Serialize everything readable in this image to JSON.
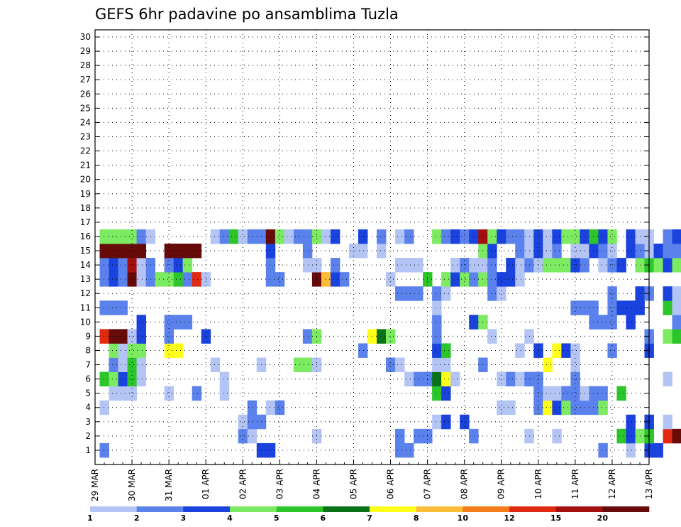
{
  "chart_data": {
    "type": "heatmap",
    "title": "GEFS 6hr padavine po ansamblima Tuzla",
    "y_ticks": [
      "1",
      "2",
      "3",
      "4",
      "5",
      "6",
      "7",
      "8",
      "9",
      "10",
      "11",
      "12",
      "13",
      "14",
      "15",
      "16",
      "17",
      "18",
      "19",
      "20",
      "21",
      "22",
      "23",
      "24",
      "25",
      "26",
      "27",
      "28",
      "29",
      "30"
    ],
    "x_ticks": [
      "29 MAR",
      "30 MAR",
      "31 MAR",
      "01 APR",
      "02 APR",
      "03 APR",
      "04 APR",
      "05 APR",
      "06 APR",
      "07 APR",
      "08 APR",
      "09 APR",
      "10 APR",
      "11 APR",
      "12 APR",
      "13 APR"
    ],
    "x_range": [
      "29 MAR 00z",
      "13 APR 00z"
    ],
    "time_step_hours": 6,
    "grid": true,
    "colorbar": {
      "labels": [
        "1",
        "2",
        "3",
        "4",
        "5",
        "6",
        "7",
        "8",
        "10",
        "12",
        "15",
        "20"
      ],
      "colors": [
        "#b4c5f5",
        "#5b82ec",
        "#1a42dd",
        "#7ceb62",
        "#2cc52a",
        "#0a7318",
        "#ffff1a",
        "#fdbd39",
        "#f47c1a",
        "#e02a12",
        "#a50f0f",
        "#660a0a"
      ]
    },
    "cells": [
      [
        1,
        1,
        1
      ],
      [
        1,
        1,
        2
      ],
      [
        1,
        18,
        3
      ],
      [
        1,
        19,
        3
      ],
      [
        1,
        33,
        2
      ],
      [
        1,
        34,
        2
      ],
      [
        1,
        55,
        2
      ],
      [
        1,
        58,
        1
      ],
      [
        1,
        60,
        3
      ],
      [
        1,
        61,
        3
      ],
      [
        2,
        16,
        2
      ],
      [
        2,
        17,
        1
      ],
      [
        2,
        24,
        1
      ],
      [
        2,
        33,
        2
      ],
      [
        2,
        35,
        2
      ],
      [
        2,
        36,
        2
      ],
      [
        2,
        41,
        2
      ],
      [
        2,
        47,
        1
      ],
      [
        2,
        50,
        1
      ],
      [
        2,
        57,
        5
      ],
      [
        2,
        58,
        3
      ],
      [
        2,
        59,
        4
      ],
      [
        2,
        60,
        5
      ],
      [
        2,
        62,
        10
      ],
      [
        2,
        63,
        12
      ],
      [
        3,
        16,
        1
      ],
      [
        3,
        17,
        2
      ],
      [
        3,
        18,
        2
      ],
      [
        3,
        37,
        1
      ],
      [
        3,
        38,
        3
      ],
      [
        3,
        40,
        3
      ],
      [
        3,
        58,
        3
      ],
      [
        3,
        60,
        3
      ],
      [
        3,
        62,
        1
      ],
      [
        3,
        65,
        5
      ],
      [
        3,
        67,
        3
      ],
      [
        3,
        69,
        2
      ],
      [
        3,
        70,
        3
      ],
      [
        3,
        71,
        3
      ],
      [
        3,
        72,
        2
      ],
      [
        4,
        1,
        1
      ],
      [
        4,
        17,
        2
      ],
      [
        4,
        19,
        1
      ],
      [
        4,
        20,
        2
      ],
      [
        4,
        44,
        1
      ],
      [
        4,
        45,
        1
      ],
      [
        4,
        48,
        2
      ],
      [
        4,
        49,
        7
      ],
      [
        4,
        50,
        3
      ],
      [
        4,
        51,
        4
      ],
      [
        4,
        52,
        2
      ],
      [
        4,
        53,
        2
      ],
      [
        4,
        54,
        2
      ],
      [
        4,
        55,
        4
      ],
      [
        5,
        2,
        1
      ],
      [
        5,
        3,
        1
      ],
      [
        5,
        4,
        1
      ],
      [
        5,
        8,
        1
      ],
      [
        5,
        11,
        2
      ],
      [
        5,
        14,
        1
      ],
      [
        5,
        37,
        5
      ],
      [
        5,
        38,
        3
      ],
      [
        5,
        48,
        2
      ],
      [
        5,
        49,
        1
      ],
      [
        5,
        50,
        1
      ],
      [
        5,
        51,
        2
      ],
      [
        5,
        52,
        2
      ],
      [
        5,
        53,
        1
      ],
      [
        5,
        54,
        2
      ],
      [
        5,
        55,
        2
      ],
      [
        5,
        57,
        5
      ],
      [
        6,
        1,
        5
      ],
      [
        6,
        2,
        4
      ],
      [
        6,
        3,
        3
      ],
      [
        6,
        4,
        5
      ],
      [
        6,
        5,
        1
      ],
      [
        6,
        14,
        1
      ],
      [
        6,
        34,
        1
      ],
      [
        6,
        35,
        2
      ],
      [
        6,
        36,
        2
      ],
      [
        6,
        37,
        6
      ],
      [
        6,
        38,
        7
      ],
      [
        6,
        39,
        1
      ],
      [
        6,
        44,
        1
      ],
      [
        6,
        45,
        2
      ],
      [
        6,
        46,
        1
      ],
      [
        6,
        47,
        2
      ],
      [
        6,
        48,
        2
      ],
      [
        6,
        52,
        2
      ],
      [
        6,
        62,
        1
      ],
      [
        7,
        2,
        2
      ],
      [
        7,
        3,
        1
      ],
      [
        7,
        4,
        5
      ],
      [
        7,
        5,
        1
      ],
      [
        7,
        13,
        1
      ],
      [
        7,
        18,
        1
      ],
      [
        7,
        22,
        4
      ],
      [
        7,
        23,
        4
      ],
      [
        7,
        24,
        1
      ],
      [
        7,
        32,
        2
      ],
      [
        7,
        33,
        1
      ],
      [
        7,
        37,
        1
      ],
      [
        7,
        38,
        1
      ],
      [
        7,
        42,
        2
      ],
      [
        7,
        49,
        7
      ],
      [
        7,
        52,
        1
      ],
      [
        8,
        2,
        4
      ],
      [
        8,
        3,
        1
      ],
      [
        8,
        4,
        4
      ],
      [
        8,
        5,
        4
      ],
      [
        8,
        8,
        7
      ],
      [
        8,
        9,
        7
      ],
      [
        8,
        29,
        2
      ],
      [
        8,
        37,
        3
      ],
      [
        8,
        38,
        5
      ],
      [
        8,
        46,
        1
      ],
      [
        8,
        48,
        3
      ],
      [
        8,
        50,
        7
      ],
      [
        8,
        51,
        3
      ],
      [
        8,
        52,
        1
      ],
      [
        8,
        56,
        2
      ],
      [
        8,
        60,
        3
      ],
      [
        9,
        1,
        10
      ],
      [
        9,
        2,
        12
      ],
      [
        9,
        3,
        12
      ],
      [
        9,
        4,
        1
      ],
      [
        9,
        5,
        3
      ],
      [
        9,
        8,
        2
      ],
      [
        9,
        12,
        3
      ],
      [
        9,
        23,
        2
      ],
      [
        9,
        24,
        4
      ],
      [
        9,
        30,
        7
      ],
      [
        9,
        31,
        6
      ],
      [
        9,
        32,
        4
      ],
      [
        9,
        37,
        2
      ],
      [
        9,
        43,
        1
      ],
      [
        9,
        47,
        1
      ],
      [
        9,
        60,
        2
      ],
      [
        9,
        62,
        4
      ],
      [
        9,
        63,
        5
      ],
      [
        9,
        64,
        4
      ],
      [
        9,
        65,
        4
      ],
      [
        9,
        70,
        4
      ],
      [
        9,
        71,
        4
      ],
      [
        9,
        72,
        8
      ],
      [
        10,
        5,
        3
      ],
      [
        10,
        8,
        2
      ],
      [
        10,
        9,
        2
      ],
      [
        10,
        10,
        2
      ],
      [
        10,
        37,
        2
      ],
      [
        10,
        41,
        3
      ],
      [
        10,
        42,
        4
      ],
      [
        10,
        54,
        2
      ],
      [
        10,
        55,
        2
      ],
      [
        10,
        56,
        2
      ],
      [
        10,
        58,
        3
      ],
      [
        10,
        63,
        2
      ],
      [
        10,
        64,
        2
      ],
      [
        10,
        66,
        1
      ],
      [
        10,
        70,
        1
      ],
      [
        11,
        1,
        2
      ],
      [
        11,
        2,
        2
      ],
      [
        11,
        3,
        2
      ],
      [
        11,
        37,
        1
      ],
      [
        11,
        52,
        2
      ],
      [
        11,
        53,
        2
      ],
      [
        11,
        54,
        2
      ],
      [
        11,
        56,
        2
      ],
      [
        11,
        57,
        3
      ],
      [
        11,
        58,
        3
      ],
      [
        11,
        59,
        3
      ],
      [
        11,
        62,
        5
      ],
      [
        11,
        63,
        1
      ],
      [
        11,
        64,
        3
      ],
      [
        11,
        65,
        3
      ],
      [
        11,
        66,
        3
      ],
      [
        11,
        67,
        3
      ],
      [
        11,
        72,
        3
      ],
      [
        12,
        33,
        2
      ],
      [
        12,
        34,
        2
      ],
      [
        12,
        35,
        2
      ],
      [
        12,
        37,
        2
      ],
      [
        12,
        38,
        1
      ],
      [
        12,
        43,
        2
      ],
      [
        12,
        44,
        1
      ],
      [
        12,
        56,
        2
      ],
      [
        12,
        59,
        3
      ],
      [
        12,
        60,
        2
      ],
      [
        12,
        62,
        3
      ],
      [
        12,
        63,
        1
      ],
      [
        12,
        65,
        5
      ],
      [
        12,
        66,
        6
      ],
      [
        12,
        67,
        4
      ],
      [
        12,
        68,
        5
      ],
      [
        12,
        69,
        3
      ],
      [
        12,
        70,
        3
      ],
      [
        12,
        71,
        1
      ],
      [
        13,
        1,
        2
      ],
      [
        13,
        2,
        3
      ],
      [
        13,
        3,
        2
      ],
      [
        13,
        4,
        12
      ],
      [
        13,
        5,
        1
      ],
      [
        13,
        6,
        2
      ],
      [
        13,
        7,
        4
      ],
      [
        13,
        8,
        4
      ],
      [
        13,
        9,
        5
      ],
      [
        13,
        10,
        2
      ],
      [
        13,
        11,
        10
      ],
      [
        13,
        12,
        1
      ],
      [
        13,
        19,
        2
      ],
      [
        13,
        20,
        2
      ],
      [
        13,
        24,
        12
      ],
      [
        13,
        25,
        8
      ],
      [
        13,
        26,
        3
      ],
      [
        13,
        27,
        2
      ],
      [
        13,
        32,
        1
      ],
      [
        13,
        36,
        5
      ],
      [
        13,
        38,
        4
      ],
      [
        13,
        39,
        3
      ],
      [
        13,
        40,
        4
      ],
      [
        13,
        41,
        2
      ],
      [
        13,
        42,
        4
      ],
      [
        13,
        43,
        2
      ],
      [
        13,
        44,
        3
      ],
      [
        13,
        45,
        3
      ],
      [
        13,
        46,
        1
      ],
      [
        14,
        1,
        2
      ],
      [
        14,
        2,
        3
      ],
      [
        14,
        3,
        2
      ],
      [
        14,
        4,
        11
      ],
      [
        14,
        5,
        1
      ],
      [
        14,
        6,
        2
      ],
      [
        14,
        8,
        2
      ],
      [
        14,
        9,
        3
      ],
      [
        14,
        10,
        4
      ],
      [
        14,
        19,
        2
      ],
      [
        14,
        23,
        1
      ],
      [
        14,
        24,
        1
      ],
      [
        14,
        26,
        2
      ],
      [
        14,
        33,
        1
      ],
      [
        14,
        34,
        1
      ],
      [
        14,
        35,
        1
      ],
      [
        14,
        39,
        1
      ],
      [
        14,
        40,
        2
      ],
      [
        14,
        41,
        1
      ],
      [
        14,
        42,
        1
      ],
      [
        14,
        43,
        2
      ],
      [
        14,
        45,
        3
      ],
      [
        14,
        46,
        1
      ],
      [
        14,
        47,
        2
      ],
      [
        14,
        48,
        1
      ],
      [
        14,
        49,
        4
      ],
      [
        14,
        50,
        4
      ],
      [
        14,
        51,
        4
      ],
      [
        14,
        52,
        3
      ],
      [
        14,
        53,
        2
      ],
      [
        14,
        55,
        1
      ],
      [
        14,
        56,
        2
      ],
      [
        14,
        57,
        3
      ],
      [
        14,
        59,
        4
      ],
      [
        14,
        60,
        5
      ],
      [
        14,
        61,
        4
      ],
      [
        14,
        62,
        3
      ],
      [
        14,
        63,
        4
      ],
      [
        14,
        64,
        3
      ],
      [
        14,
        65,
        4
      ],
      [
        14,
        66,
        5
      ],
      [
        14,
        67,
        2
      ],
      [
        14,
        68,
        2
      ],
      [
        15,
        1,
        12
      ],
      [
        15,
        2,
        12
      ],
      [
        15,
        3,
        12
      ],
      [
        15,
        4,
        12
      ],
      [
        15,
        5,
        12
      ],
      [
        15,
        8,
        12
      ],
      [
        15,
        9,
        12
      ],
      [
        15,
        10,
        12
      ],
      [
        15,
        11,
        12
      ],
      [
        15,
        19,
        3
      ],
      [
        15,
        23,
        2
      ],
      [
        15,
        28,
        1
      ],
      [
        15,
        29,
        1
      ],
      [
        15,
        31,
        1
      ],
      [
        15,
        42,
        4
      ],
      [
        15,
        43,
        3
      ],
      [
        15,
        46,
        2
      ],
      [
        15,
        47,
        1
      ],
      [
        15,
        48,
        3
      ],
      [
        15,
        49,
        1
      ],
      [
        15,
        50,
        2
      ],
      [
        15,
        52,
        1
      ],
      [
        15,
        53,
        1
      ],
      [
        15,
        54,
        3
      ],
      [
        15,
        55,
        2
      ],
      [
        15,
        56,
        1
      ],
      [
        15,
        58,
        3
      ],
      [
        15,
        59,
        2
      ],
      [
        15,
        60,
        1
      ],
      [
        15,
        61,
        3
      ],
      [
        15,
        62,
        2
      ],
      [
        15,
        63,
        2
      ],
      [
        15,
        64,
        3
      ],
      [
        15,
        65,
        12
      ],
      [
        15,
        66,
        2
      ],
      [
        15,
        67,
        1
      ],
      [
        15,
        68,
        4
      ],
      [
        15,
        69,
        11
      ],
      [
        15,
        70,
        2
      ],
      [
        15,
        71,
        1
      ],
      [
        15,
        72,
        3
      ],
      [
        16,
        1,
        4
      ],
      [
        16,
        2,
        4
      ],
      [
        16,
        3,
        4
      ],
      [
        16,
        4,
        4
      ],
      [
        16,
        5,
        2
      ],
      [
        16,
        6,
        1
      ],
      [
        16,
        13,
        1
      ],
      [
        16,
        14,
        2
      ],
      [
        16,
        15,
        5
      ],
      [
        16,
        16,
        1
      ],
      [
        16,
        17,
        2
      ],
      [
        16,
        18,
        2
      ],
      [
        16,
        19,
        12
      ],
      [
        16,
        20,
        4
      ],
      [
        16,
        21,
        1
      ],
      [
        16,
        22,
        2
      ],
      [
        16,
        23,
        2
      ],
      [
        16,
        24,
        4
      ],
      [
        16,
        25,
        1
      ],
      [
        16,
        26,
        3
      ],
      [
        16,
        29,
        3
      ],
      [
        16,
        31,
        2
      ],
      [
        16,
        33,
        1
      ],
      [
        16,
        34,
        2
      ],
      [
        16,
        37,
        4
      ],
      [
        16,
        38,
        2
      ],
      [
        16,
        39,
        3
      ],
      [
        16,
        40,
        2
      ],
      [
        16,
        41,
        3
      ],
      [
        16,
        42,
        11
      ],
      [
        16,
        43,
        4
      ],
      [
        16,
        44,
        3
      ],
      [
        16,
        45,
        2
      ],
      [
        16,
        46,
        2
      ],
      [
        16,
        47,
        1
      ],
      [
        16,
        48,
        3
      ],
      [
        16,
        49,
        1
      ],
      [
        16,
        50,
        3
      ],
      [
        16,
        51,
        4
      ],
      [
        16,
        52,
        4
      ],
      [
        16,
        53,
        3
      ],
      [
        16,
        54,
        5
      ],
      [
        16,
        55,
        3
      ],
      [
        16,
        56,
        4
      ],
      [
        16,
        58,
        3
      ],
      [
        16,
        59,
        1
      ],
      [
        16,
        60,
        1
      ],
      [
        16,
        62,
        2
      ],
      [
        16,
        63,
        3
      ],
      [
        16,
        64,
        4
      ],
      [
        16,
        65,
        12
      ],
      [
        16,
        66,
        1
      ],
      [
        16,
        67,
        1
      ],
      [
        16,
        68,
        3
      ],
      [
        16,
        69,
        4
      ],
      [
        16,
        70,
        1
      ],
      [
        16,
        71,
        5
      ],
      [
        16,
        72,
        3
      ]
    ]
  }
}
